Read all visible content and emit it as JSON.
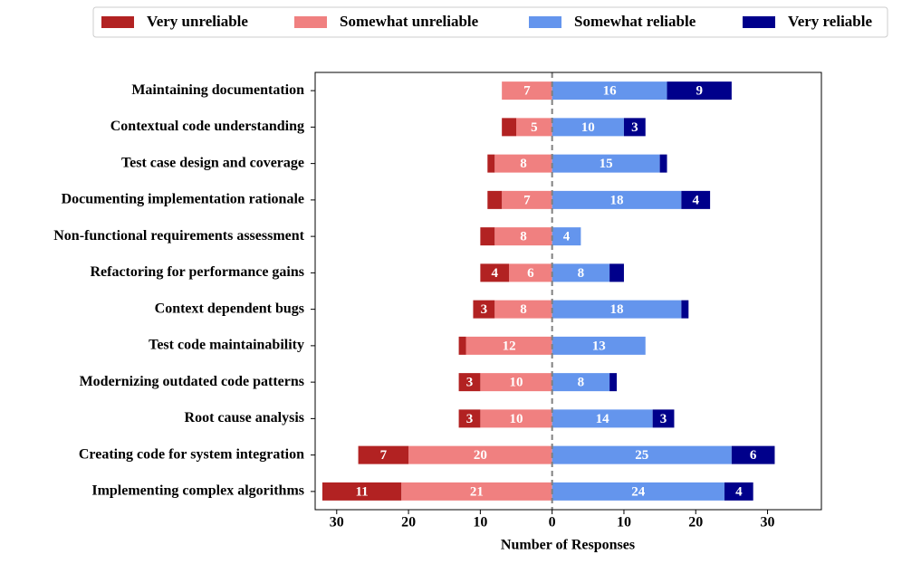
{
  "chart_data": {
    "type": "diverging_bar",
    "xlabel": "Number of Responses",
    "categories": [
      "Maintaining documentation",
      "Contextual code understanding",
      "Test case design and coverage",
      "Documenting implementation rationale",
      "Non-functional requirements assessment",
      "Refactoring for performance gains",
      "Context dependent bugs",
      "Test code maintainability",
      "Modernizing outdated code patterns",
      "Root cause analysis",
      "Creating code for system integration",
      "Implementing complex algorithms"
    ],
    "series": [
      {
        "name": "Very unreliable",
        "color": "#b22222",
        "side": "left",
        "values": [
          0,
          2,
          1,
          2,
          2,
          4,
          3,
          1,
          3,
          3,
          7,
          11
        ]
      },
      {
        "name": "Somewhat unreliable",
        "color": "#f08080",
        "side": "left",
        "values": [
          7,
          5,
          8,
          7,
          8,
          6,
          8,
          12,
          10,
          10,
          20,
          21
        ]
      },
      {
        "name": "Somewhat reliable",
        "color": "#6495ed",
        "side": "right",
        "values": [
          16,
          10,
          15,
          18,
          4,
          8,
          18,
          13,
          8,
          14,
          25,
          24
        ]
      },
      {
        "name": "Very reliable",
        "color": "#00008b",
        "side": "right",
        "values": [
          9,
          3,
          1,
          4,
          0,
          2,
          1,
          0,
          1,
          3,
          6,
          4
        ]
      }
    ],
    "xlim": [
      -33,
      37.5
    ],
    "xticks": [
      {
        "value": -30,
        "label": "30"
      },
      {
        "value": -20,
        "label": "20"
      },
      {
        "value": -10,
        "label": "10"
      },
      0,
      10,
      20,
      30
    ],
    "legend": "top"
  }
}
